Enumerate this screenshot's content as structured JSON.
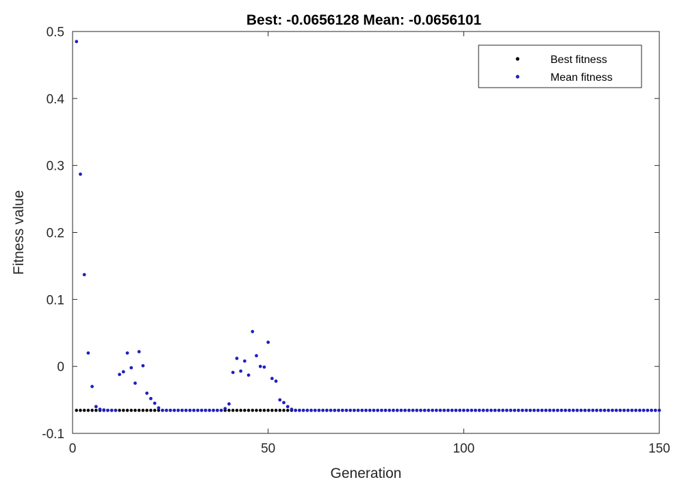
{
  "chart_data": {
    "type": "scatter",
    "title": "Best: -0.0656128 Mean: -0.0656101",
    "xlabel": "Generation",
    "ylabel": "Fitness value",
    "xlim": [
      0,
      150
    ],
    "ylim": [
      -0.1,
      0.5
    ],
    "xticks": [
      0,
      50,
      100,
      150
    ],
    "xtick_labels": [
      "0",
      "50",
      "100",
      "150"
    ],
    "yticks": [
      -0.1,
      0,
      0.1,
      0.2,
      0.3,
      0.4,
      0.5
    ],
    "ytick_labels": [
      "-0.1",
      "0",
      "0.1",
      "0.2",
      "0.3",
      "0.4",
      "0.5"
    ],
    "grid": false,
    "legend_position": "top-right",
    "series": [
      {
        "name": "Best fitness",
        "color": "#000000",
        "x_range": [
          1,
          150
        ],
        "constant_y": -0.0656
      },
      {
        "name": "Mean fitness",
        "color": "#1f1fbf",
        "points": [
          [
            1,
            0.485
          ],
          [
            2,
            0.287
          ],
          [
            3,
            0.137
          ],
          [
            4,
            0.02
          ],
          [
            5,
            -0.03
          ],
          [
            6,
            -0.06
          ],
          [
            7,
            -0.064
          ],
          [
            8,
            -0.065
          ],
          [
            9,
            -0.0656
          ],
          [
            10,
            -0.0656
          ],
          [
            12,
            -0.012
          ],
          [
            13,
            -0.008
          ],
          [
            14,
            0.02
          ],
          [
            15,
            -0.002
          ],
          [
            16,
            -0.025
          ],
          [
            17,
            0.022
          ],
          [
            18,
            0.001
          ],
          [
            19,
            -0.04
          ],
          [
            20,
            -0.048
          ],
          [
            21,
            -0.055
          ],
          [
            22,
            -0.062
          ],
          [
            23,
            -0.0656
          ],
          [
            39,
            -0.063
          ],
          [
            40,
            -0.056
          ],
          [
            41,
            -0.009
          ],
          [
            42,
            0.012
          ],
          [
            43,
            -0.007
          ],
          [
            44,
            0.008
          ],
          [
            45,
            -0.013
          ],
          [
            46,
            0.052
          ],
          [
            47,
            0.016
          ],
          [
            48,
            0.0
          ],
          [
            49,
            -0.001
          ],
          [
            50,
            0.036
          ],
          [
            51,
            -0.018
          ],
          [
            52,
            -0.022
          ],
          [
            53,
            -0.05
          ],
          [
            54,
            -0.054
          ],
          [
            55,
            -0.06
          ],
          [
            56,
            -0.064
          ],
          [
            57,
            -0.0656
          ]
        ],
        "baseline_y": -0.0656
      }
    ]
  }
}
